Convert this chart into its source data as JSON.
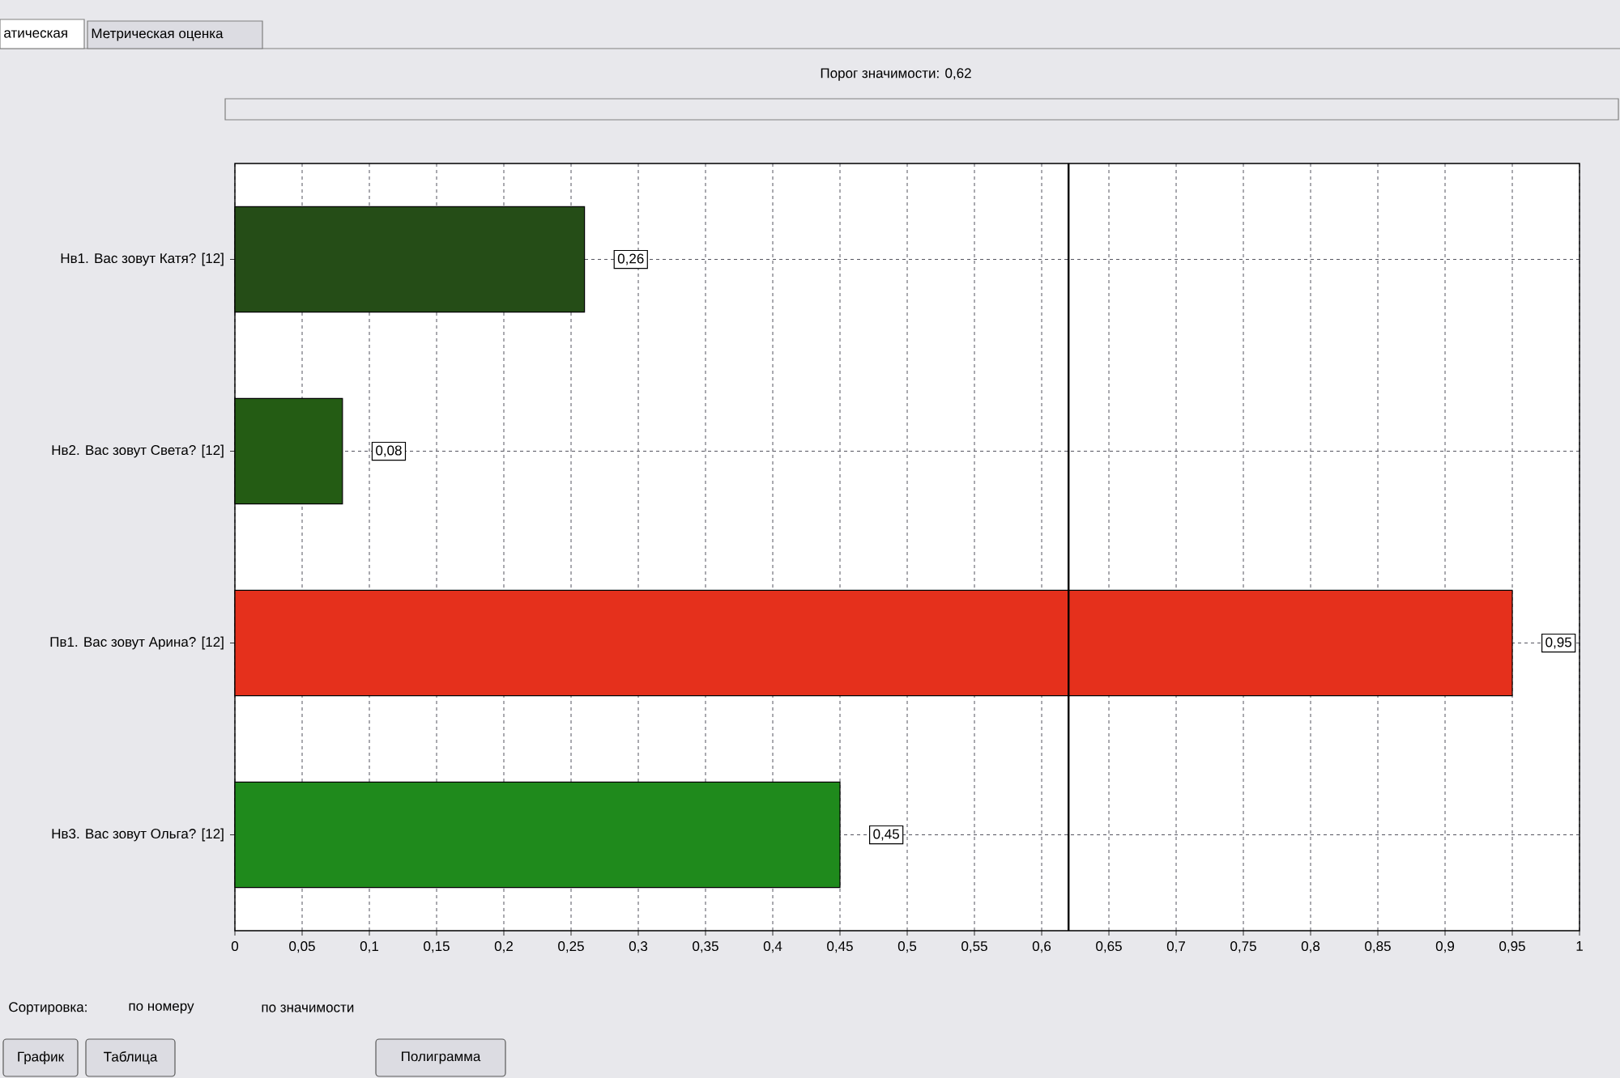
{
  "chart_data": {
    "type": "bar",
    "orientation": "horizontal",
    "title": "Порог значимости: 0,62",
    "categories": [
      "Нв1. Вас зовут Катя? [12]",
      "Нв2. Вас зовут Света? [12]",
      "Пв1. Вас зовут Арина? [12]",
      "Нв3. Вас зовут Ольга? [12]"
    ],
    "values": [
      0.26,
      0.08,
      0.95,
      0.45
    ],
    "value_labels": [
      "0,26",
      "0,08",
      "0,95",
      "0,45"
    ],
    "colors": [
      "#254d17",
      "#245c14",
      "#e5301c",
      "#1f8a1c"
    ],
    "xlim": [
      0,
      1
    ],
    "xticks": [
      0,
      {
        "value": 0.05,
        "label": "0,05"
      },
      {
        "value": 0.1,
        "label": "0,1"
      },
      {
        "value": 0.15,
        "label": "0,15"
      },
      {
        "value": 0.2,
        "label": "0,2"
      },
      {
        "value": 0.25,
        "label": "0,25"
      },
      {
        "value": 0.3,
        "label": "0,3"
      },
      {
        "value": 0.35,
        "label": "0,35"
      },
      {
        "value": 0.4,
        "label": "0,4"
      },
      {
        "value": 0.45,
        "label": "0,45"
      },
      {
        "value": 0.5,
        "label": "0,5"
      },
      {
        "value": 0.55,
        "label": "0,55"
      },
      {
        "value": 0.6,
        "label": "0,6"
      },
      {
        "value": 0.65,
        "label": "0,65"
      },
      {
        "value": 0.7,
        "label": "0,7"
      },
      {
        "value": 0.75,
        "label": "0,75"
      },
      {
        "value": 0.8,
        "label": "0,8"
      },
      {
        "value": 0.85,
        "label": "0,85"
      },
      {
        "value": 0.9,
        "label": "0,9"
      },
      {
        "value": 0.95,
        "label": "0,95"
      },
      1
    ],
    "grid": true,
    "ref_lines": [
      {
        "axis": "x",
        "value": 0.62,
        "color": "#000000"
      }
    ],
    "annotations": [
      "атическая",
      "Метрическая оценка",
      "Сортировка:",
      "по номеру",
      "по значимости",
      "График",
      "Таблица",
      "Полиграмма"
    ]
  }
}
